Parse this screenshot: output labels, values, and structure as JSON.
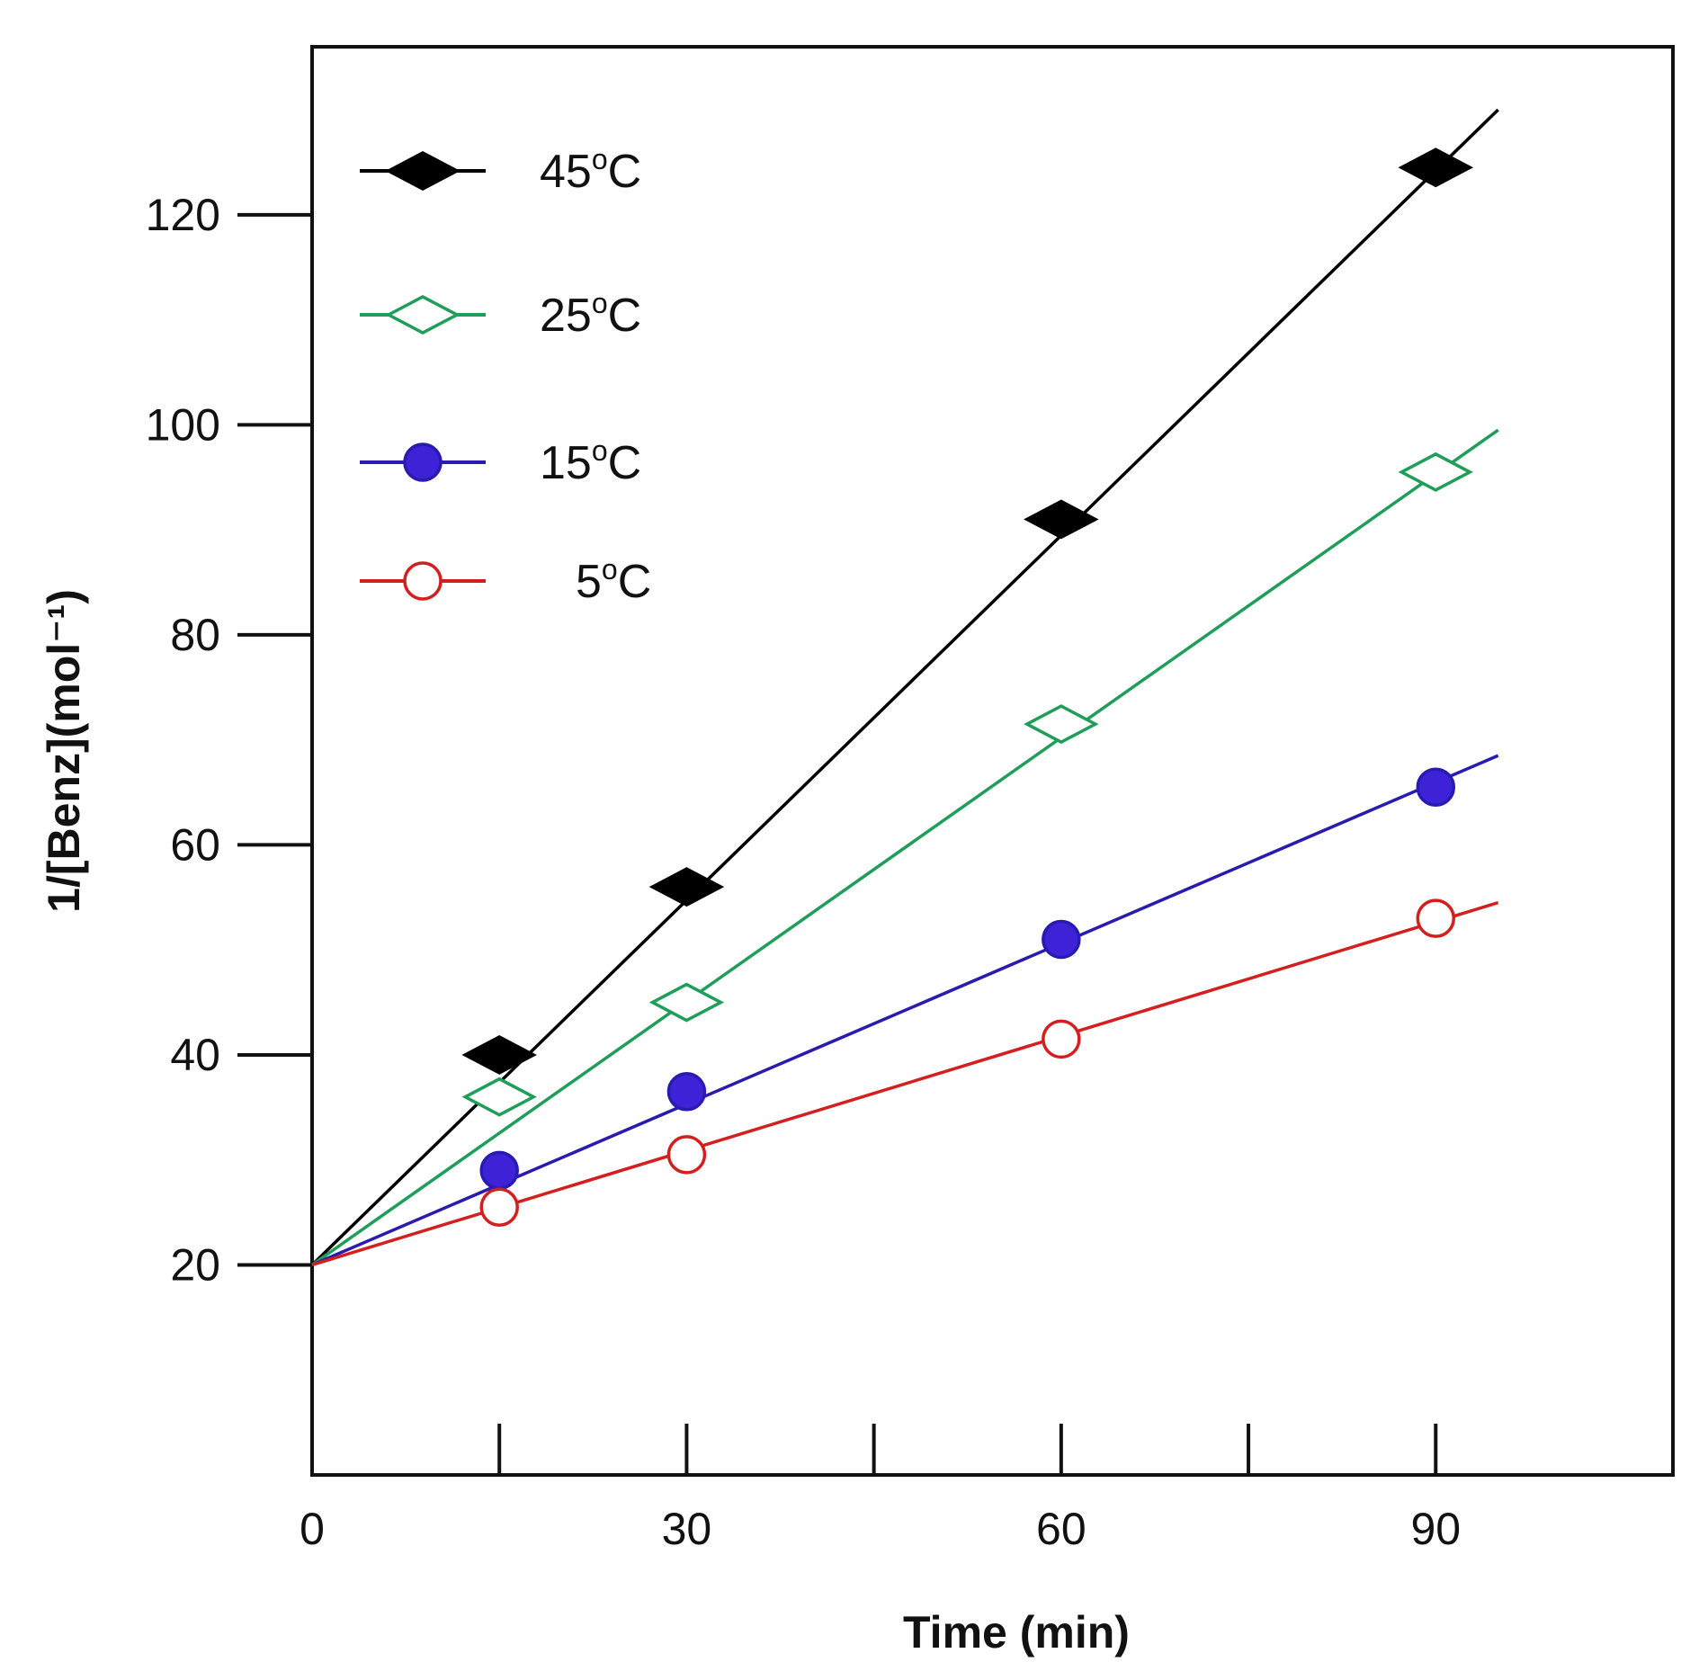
{
  "chart_data": {
    "type": "scatter",
    "title": "",
    "xlabel": "Time (min)",
    "ylabel": "1/[Benz](mol⁻¹)",
    "xlim": [
      0,
      109
    ],
    "ylim": [
      0,
      136
    ],
    "x_ticks": [
      0,
      30,
      60,
      90
    ],
    "y_ticks": [
      20,
      40,
      60,
      80,
      100,
      120
    ],
    "x_minor_ticks": [
      15,
      30,
      45,
      60,
      75,
      90
    ],
    "grid": false,
    "legend_position": "top-left",
    "intercept": 20,
    "fit_x_end": 95,
    "series": [
      {
        "name": "45",
        "unit": "oC",
        "color": "#000000",
        "marker": "diamond-filled",
        "x": [
          15,
          30,
          60,
          90
        ],
        "y": [
          40,
          56,
          91,
          124.5
        ],
        "fit_y_end": 130
      },
      {
        "name": "25",
        "unit": "oC",
        "color": "#1f9e5a",
        "marker": "diamond-open",
        "x": [
          15,
          30,
          60,
          90
        ],
        "y": [
          36,
          45,
          71.5,
          95.5
        ],
        "fit_y_end": 99.5
      },
      {
        "name": "15",
        "unit": "oC",
        "color": "#2a1bb0",
        "marker_fill": "#3d22d8",
        "marker": "circle-filled",
        "x": [
          15,
          30,
          60,
          90
        ],
        "y": [
          29,
          36.5,
          51,
          65.5
        ],
        "fit_y_end": 68.5
      },
      {
        "name": "5",
        "unit": "oC",
        "color": "#d41f1f",
        "marker": "circle-open",
        "x": [
          15,
          30,
          60,
          90
        ],
        "y": [
          25.5,
          30.5,
          41.5,
          53
        ],
        "fit_y_end": 54.5
      }
    ]
  }
}
